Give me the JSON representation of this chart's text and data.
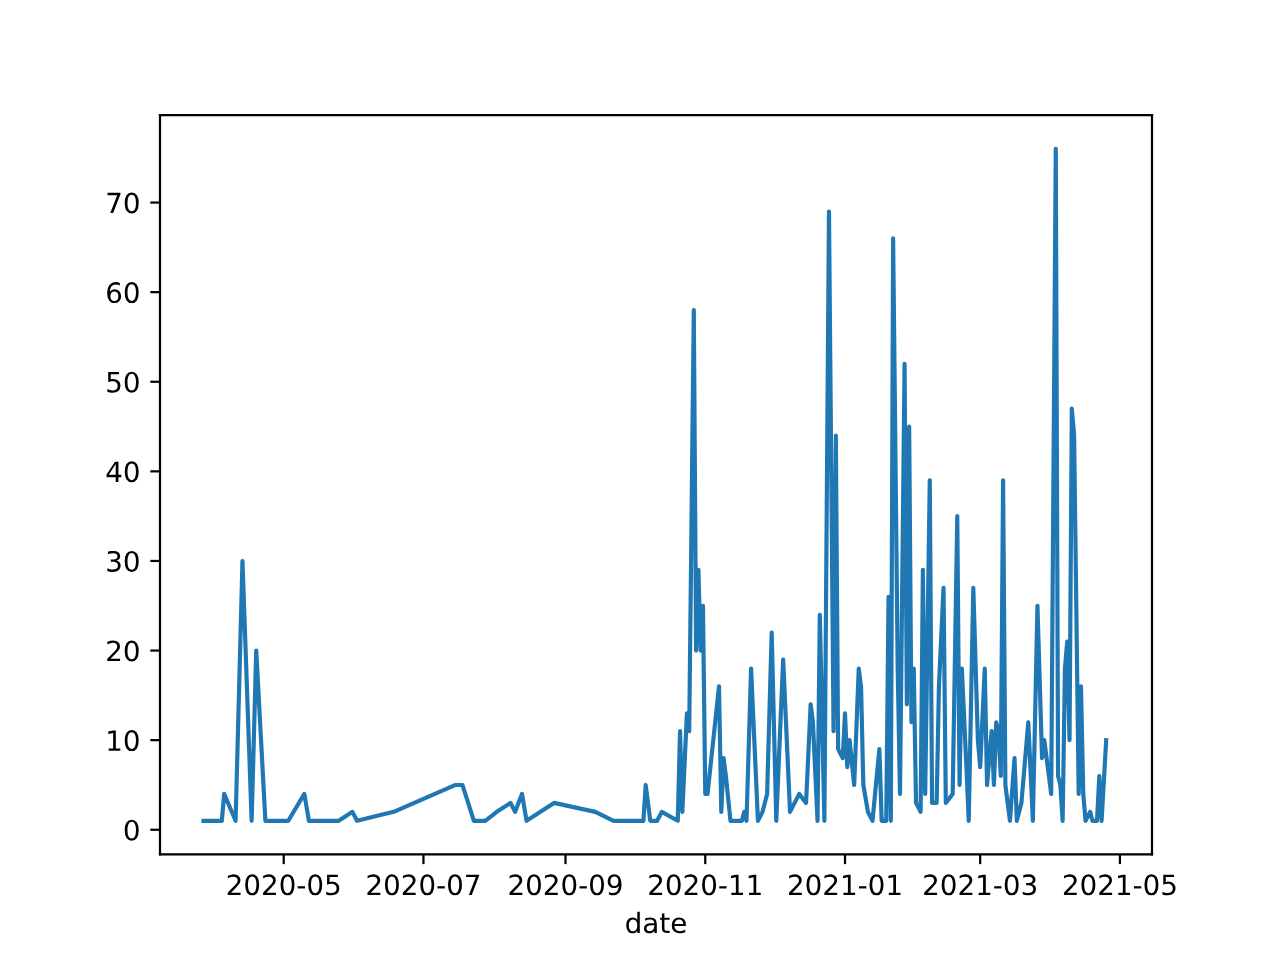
{
  "chart_data": {
    "type": "line",
    "xlabel": "date",
    "x": [
      "2020-03-27",
      "2020-04-04",
      "2020-04-05",
      "2020-04-10",
      "2020-04-13",
      "2020-04-17",
      "2020-04-19",
      "2020-04-23",
      "2020-05-03",
      "2020-05-10",
      "2020-05-12",
      "2020-05-25",
      "2020-05-31",
      "2020-06-02",
      "2020-06-18",
      "2020-07-15",
      "2020-07-18",
      "2020-07-23",
      "2020-07-28",
      "2020-08-02",
      "2020-08-08",
      "2020-08-10",
      "2020-08-13",
      "2020-08-15",
      "2020-08-27",
      "2020-09-14",
      "2020-09-22",
      "2020-10-05",
      "2020-10-06",
      "2020-10-08",
      "2020-10-11",
      "2020-10-13",
      "2020-10-20",
      "2020-10-21",
      "2020-10-22",
      "2020-10-24",
      "2020-10-25",
      "2020-10-27",
      "2020-10-28",
      "2020-10-29",
      "2020-10-30",
      "2020-10-31",
      "2020-11-01",
      "2020-11-02",
      "2020-11-07",
      "2020-11-08",
      "2020-11-09",
      "2020-11-10",
      "2020-11-12",
      "2020-11-17",
      "2020-11-18",
      "2020-11-19",
      "2020-11-21",
      "2020-11-24",
      "2020-11-26",
      "2020-11-28",
      "2020-11-30",
      "2020-12-02",
      "2020-12-05",
      "2020-12-08",
      "2020-12-12",
      "2020-12-15",
      "2020-12-17",
      "2020-12-18",
      "2020-12-20",
      "2020-12-21",
      "2020-12-23",
      "2020-12-25",
      "2020-12-27",
      "2020-12-28",
      "2020-12-29",
      "2020-12-31",
      "2021-01-01",
      "2021-01-02",
      "2021-01-03",
      "2021-01-05",
      "2021-01-07",
      "2021-01-08",
      "2021-01-09",
      "2021-01-11",
      "2021-01-13",
      "2021-01-16",
      "2021-01-17",
      "2021-01-19",
      "2021-01-20",
      "2021-01-21",
      "2021-01-22",
      "2021-01-24",
      "2021-01-25",
      "2021-01-27",
      "2021-01-28",
      "2021-01-29",
      "2021-01-30",
      "2021-01-31",
      "2021-02-01",
      "2021-02-03",
      "2021-02-04",
      "2021-02-05",
      "2021-02-07",
      "2021-02-08",
      "2021-02-10",
      "2021-02-11",
      "2021-02-13",
      "2021-02-14",
      "2021-02-17",
      "2021-02-19",
      "2021-02-20",
      "2021-02-21",
      "2021-02-23",
      "2021-02-24",
      "2021-02-26",
      "2021-02-28",
      "2021-03-01",
      "2021-03-03",
      "2021-03-04",
      "2021-03-06",
      "2021-03-07",
      "2021-03-08",
      "2021-03-09",
      "2021-03-10",
      "2021-03-11",
      "2021-03-12",
      "2021-03-14",
      "2021-03-16",
      "2021-03-17",
      "2021-03-19",
      "2021-03-22",
      "2021-03-24",
      "2021-03-26",
      "2021-03-28",
      "2021-03-29",
      "2021-03-31",
      "2021-04-01",
      "2021-04-03",
      "2021-04-04",
      "2021-04-05",
      "2021-04-06",
      "2021-04-07",
      "2021-04-08",
      "2021-04-09",
      "2021-04-10",
      "2021-04-11",
      "2021-04-13",
      "2021-04-14",
      "2021-04-15",
      "2021-04-16",
      "2021-04-18",
      "2021-04-19",
      "2021-04-21",
      "2021-04-22",
      "2021-04-23",
      "2021-04-25"
    ],
    "series": [
      {
        "color": "#1f77b4",
        "values": [
          1,
          1,
          4,
          1,
          30,
          1,
          20,
          1,
          1,
          4,
          1,
          1,
          2,
          1,
          2,
          5,
          5,
          1,
          1,
          2,
          3,
          2,
          4,
          1,
          3,
          2,
          1,
          1,
          5,
          1,
          1,
          2,
          1,
          11,
          2,
          13,
          11,
          58,
          20,
          29,
          20,
          25,
          4,
          4,
          16,
          2,
          8,
          6,
          1,
          1,
          2,
          1,
          18,
          1,
          2,
          4,
          22,
          1,
          19,
          2,
          4,
          3,
          14,
          12,
          1,
          24,
          1,
          69,
          11,
          44,
          9,
          8,
          13,
          7,
          10,
          5,
          18,
          16,
          5,
          2,
          1,
          9,
          1,
          1,
          26,
          1,
          66,
          18,
          4,
          52,
          14,
          45,
          12,
          18,
          3,
          2,
          29,
          4,
          39,
          3,
          3,
          16,
          27,
          3,
          4,
          35,
          5,
          18,
          7,
          1,
          27,
          10,
          7,
          18,
          5,
          11,
          5,
          12,
          11,
          6,
          39,
          5,
          1,
          8,
          1,
          3,
          12,
          1,
          25,
          8,
          10,
          6,
          4,
          76,
          6,
          5,
          1,
          18,
          21,
          10,
          47,
          44,
          4,
          16,
          4,
          1,
          2,
          1,
          1,
          6,
          1,
          10
        ]
      }
    ],
    "xlim": [
      "2020-03-08",
      "2021-05-15"
    ],
    "xticks": [
      "2020-05",
      "2020-07",
      "2020-09",
      "2020-11",
      "2021-01",
      "2021-03",
      "2021-05"
    ],
    "ylim": [
      -2.75,
      79.75
    ],
    "yticks": [
      0,
      10,
      20,
      30,
      40,
      50,
      60,
      70
    ]
  }
}
